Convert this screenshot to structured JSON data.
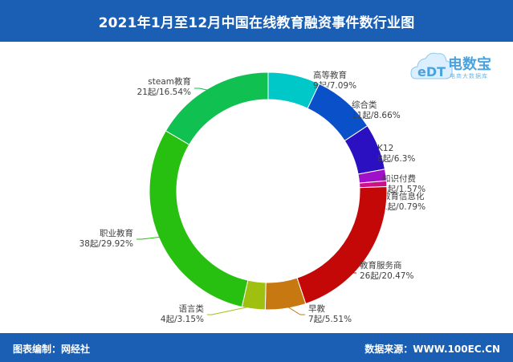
{
  "header": {
    "title": "2021年1月至12月中国在线教育融资事件数行业图"
  },
  "footer": {
    "editor": "图表编制：网经社",
    "source": "数据来源：WWW.100EC.CN"
  },
  "logo": {
    "name": "电数宝",
    "tagline": "电商大数据库",
    "mark": "eDT"
  },
  "colors": {
    "header_bg": "#1a5fb4",
    "footer_bg": "#1a5fb4"
  },
  "chart_data": {
    "type": "pie",
    "title": "2021年1月至12月中国在线教育融资事件数行业图",
    "donut": true,
    "unit": "起",
    "slices": [
      {
        "name": "高等教育",
        "value": 9,
        "percent": "7.09%",
        "label": "9起/7.09%",
        "color": "#00c8c8"
      },
      {
        "name": "综合类",
        "value": 11,
        "percent": "8.66%",
        "label": "11起/8.66%",
        "color": "#0a50c8"
      },
      {
        "name": "K12",
        "value": 8,
        "percent": "6.3%",
        "label": "8起/6.3%",
        "color": "#2a10c0"
      },
      {
        "name": "知识付费",
        "value": 2,
        "percent": "1.57%",
        "label": "2起/1.57%",
        "color": "#a010c8"
      },
      {
        "name": "教育信息化",
        "value": 1,
        "percent": "0.79%",
        "label": "1起/0.79%",
        "color": "#d0108a"
      },
      {
        "name": "教育服务商",
        "value": 26,
        "percent": "20.47%",
        "label": "26起/20.47%",
        "color": "#c40808"
      },
      {
        "name": "早教",
        "value": 7,
        "percent": "5.51%",
        "label": "7起/5.51%",
        "color": "#c87810"
      },
      {
        "name": "语言类",
        "value": 4,
        "percent": "3.15%",
        "label": "4起/3.15%",
        "color": "#a0c010"
      },
      {
        "name": "职业教育",
        "value": 38,
        "percent": "29.92%",
        "label": "38起/29.92%",
        "color": "#28c010"
      },
      {
        "name": "steam教育",
        "value": 21,
        "percent": "16.54%",
        "label": "21起/16.54%",
        "color": "#10c050"
      }
    ],
    "legend": "none"
  }
}
